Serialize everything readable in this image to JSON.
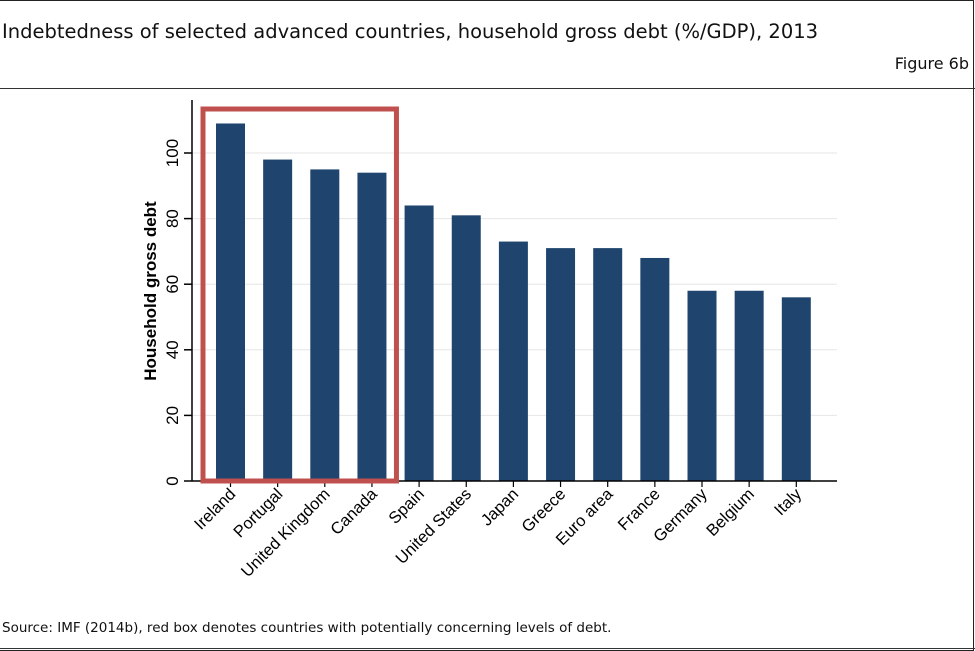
{
  "header": {
    "title": "Indebtedness of selected advanced countries, household gross debt (%/GDP), 2013",
    "figure_label": "Figure 6b"
  },
  "footer": {
    "source": "Source: IMF (2014b), red box denotes countries with potentially concerning levels of debt."
  },
  "colors": {
    "bar": "#1f456e",
    "highlight_box": "#c0504d",
    "grid": "#e6e6e6",
    "axis": "#000000"
  },
  "chart_data": {
    "type": "bar",
    "title": "",
    "xlabel": "",
    "ylabel": "Household gross debt",
    "ylim": [
      0,
      110
    ],
    "yticks": [
      0,
      20,
      40,
      60,
      80,
      100
    ],
    "grid": true,
    "categories": [
      "Ireland",
      "Portugal",
      "United Kingdom",
      "Canada",
      "Spain",
      "United States",
      "Japan",
      "Greece",
      "Euro area",
      "France",
      "Germany",
      "Belgium",
      "Italy"
    ],
    "values": [
      109,
      98,
      95,
      94,
      84,
      81,
      73,
      71,
      71,
      68,
      58,
      58,
      56
    ],
    "highlight": {
      "categories": [
        "Ireland",
        "Portugal",
        "United Kingdom",
        "Canada"
      ],
      "meaning": "countries with potentially concerning levels of debt"
    }
  }
}
